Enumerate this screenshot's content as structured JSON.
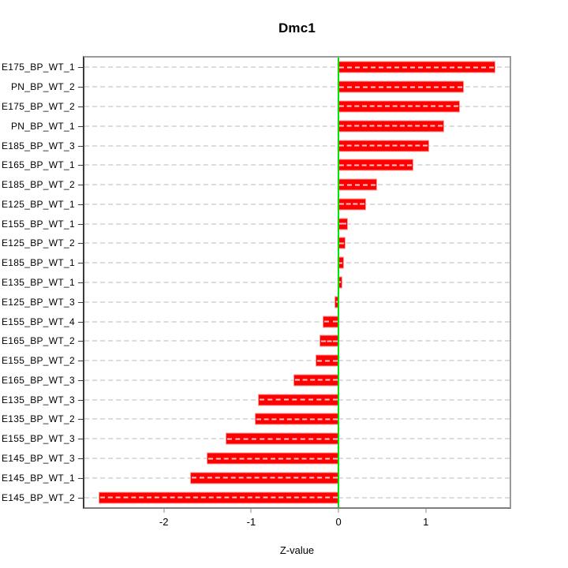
{
  "title": "Dmc1",
  "xlabel": "Z-value",
  "chart_data": {
    "type": "bar",
    "orientation": "horizontal",
    "title": "Dmc1",
    "xlabel": "Z-value",
    "ylabel": "",
    "grid": true,
    "xlim": [
      -2.91,
      1.96
    ],
    "xticks": [
      -2,
      -1,
      0,
      1
    ],
    "xtick_labels": [
      "-2",
      "-1",
      "0",
      "1"
    ],
    "bar_color": "#ff0000",
    "zero_line_color": "#00e400",
    "gridline_color": "#dcdcdc",
    "categories": [
      "E175_BP_WT_1",
      "PN_BP_WT_2",
      "E175_BP_WT_2",
      "PN_BP_WT_1",
      "E185_BP_WT_3",
      "E165_BP_WT_1",
      "E185_BP_WT_2",
      "E125_BP_WT_1",
      "E155_BP_WT_1",
      "E125_BP_WT_2",
      "E185_BP_WT_1",
      "E135_BP_WT_1",
      "E125_BP_WT_3",
      "E155_BP_WT_4",
      "E165_BP_WT_2",
      "E155_BP_WT_2",
      "E165_BP_WT_3",
      "E135_BP_WT_3",
      "E135_BP_WT_2",
      "E155_BP_WT_3",
      "E145_BP_WT_3",
      "E145_BP_WT_1",
      "E145_BP_WT_2"
    ],
    "values": [
      1.79,
      1.43,
      1.38,
      1.2,
      1.03,
      0.85,
      0.43,
      0.31,
      0.1,
      0.07,
      0.05,
      0.04,
      -0.04,
      -0.17,
      -0.21,
      -0.25,
      -0.51,
      -0.91,
      -0.95,
      -1.28,
      -1.5,
      -1.69,
      -2.74
    ]
  }
}
